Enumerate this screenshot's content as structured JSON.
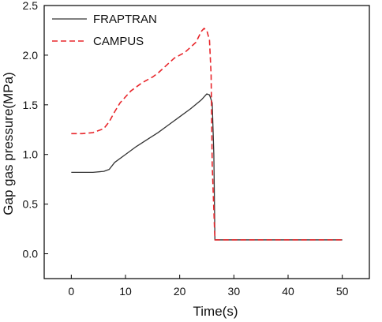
{
  "chart_data": {
    "type": "line",
    "title": "",
    "xlabel": "Time(s)",
    "ylabel": "Gap gas pressure(MPa)",
    "xlim": [
      -5,
      55
    ],
    "ylim": [
      -0.25,
      2.5
    ],
    "xticks": [
      0,
      10,
      20,
      30,
      40,
      50
    ],
    "yticks": [
      0.0,
      0.5,
      1.0,
      1.5,
      2.0,
      2.5
    ],
    "xtick_labels": [
      "0",
      "10",
      "20",
      "30",
      "40",
      "50"
    ],
    "ytick_labels": [
      "0.0",
      "0.5",
      "1.0",
      "1.5",
      "2.0",
      "2.5"
    ],
    "grid": false,
    "legend_position": "top-left",
    "series": [
      {
        "name": "FRAPTRAN",
        "color": "#333333",
        "style": "solid",
        "x": [
          0,
          2,
          4,
          6,
          7,
          8,
          10,
          12,
          14,
          16,
          18,
          20,
          22,
          24,
          25,
          25.5,
          26,
          26.3,
          26.5,
          27,
          30,
          35,
          40,
          45,
          50
        ],
        "y": [
          0.82,
          0.82,
          0.82,
          0.83,
          0.85,
          0.92,
          1.0,
          1.08,
          1.15,
          1.22,
          1.3,
          1.38,
          1.46,
          1.55,
          1.61,
          1.6,
          1.52,
          1.0,
          0.14,
          0.14,
          0.14,
          0.14,
          0.14,
          0.14,
          0.14
        ]
      },
      {
        "name": "CAMPUS",
        "color": "#e8262b",
        "style": "dashed",
        "x": [
          0,
          2,
          4,
          5,
          6,
          7,
          8,
          9,
          10,
          11,
          12,
          13,
          14,
          15,
          16,
          17,
          18,
          19,
          20,
          21,
          22,
          23,
          24,
          24.5,
          25,
          25.5,
          25.8,
          26,
          26.5,
          27,
          30,
          35,
          40,
          45,
          50
        ],
        "y": [
          1.21,
          1.21,
          1.22,
          1.24,
          1.26,
          1.33,
          1.43,
          1.52,
          1.58,
          1.64,
          1.68,
          1.72,
          1.75,
          1.78,
          1.82,
          1.87,
          1.92,
          1.97,
          2.0,
          2.03,
          2.08,
          2.13,
          2.24,
          2.27,
          2.25,
          2.15,
          1.8,
          0.9,
          0.14,
          0.14,
          0.14,
          0.14,
          0.14,
          0.14,
          0.14
        ]
      }
    ]
  }
}
